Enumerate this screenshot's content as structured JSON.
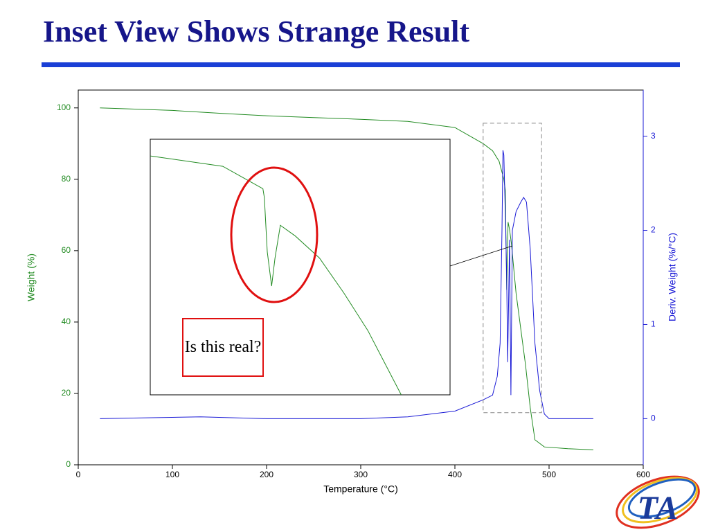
{
  "slide": {
    "title": "Inset View Shows Strange Result",
    "logo": "TA"
  },
  "chart_data": [
    {
      "type": "line",
      "xlabel": "Temperature (°C)",
      "ylabel": "Weight (%)",
      "y2label": "Deriv. Weight (%/°C)",
      "xlim": [
        0,
        600
      ],
      "xticks": [
        0,
        100,
        200,
        300,
        400,
        500,
        600
      ],
      "ylim": [
        0,
        105
      ],
      "yticks": [
        0,
        20,
        40,
        60,
        80,
        100
      ],
      "y2lim": [
        -0.49,
        3.49
      ],
      "y2ticks": [
        0,
        1,
        2,
        3
      ],
      "series": [
        {
          "color": "#228b22",
          "x": [
            23,
            100,
            150,
            200,
            250,
            300,
            350,
            400,
            430,
            440,
            447,
            452,
            453.5,
            455,
            456.5,
            458,
            460,
            465,
            470,
            475,
            480,
            485,
            495,
            520,
            547
          ],
          "values": [
            100,
            99.3,
            98.5,
            97.8,
            97.3,
            96.8,
            96.2,
            94.5,
            90,
            88,
            85,
            80,
            77,
            49,
            68,
            66,
            62,
            48,
            38,
            28,
            16,
            7,
            5,
            4.5,
            4.2
          ]
        },
        {
          "color": "#1a1ad6",
          "axis": "y2",
          "x": [
            23,
            130,
            200,
            300,
            350,
            400,
            430,
            440,
            445,
            448,
            450,
            451,
            452,
            454,
            455,
            456,
            457,
            458,
            459.5,
            461,
            465,
            470,
            473,
            476,
            480,
            485,
            490,
            495,
            500,
            547
          ],
          "values": [
            0,
            0.02,
            0,
            0,
            0.02,
            0.08,
            0.2,
            0.25,
            0.45,
            0.8,
            2.0,
            2.85,
            2.8,
            2.0,
            1.5,
            0.6,
            1.2,
            1.9,
            0.25,
            2.0,
            2.2,
            2.3,
            2.35,
            2.3,
            1.8,
            0.8,
            0.3,
            0.05,
            0,
            0
          ]
        }
      ]
    },
    {
      "type": "line",
      "xlim": [
        430,
        492
      ],
      "ylim": [
        14.6,
        95.7
      ],
      "annotation": "Is this real?",
      "series": [
        {
          "color": "#228b22",
          "x": [
            430,
            445,
            453.3,
            453.6,
            454.2,
            455.1,
            455.8,
            456.9,
            460,
            465,
            470,
            475,
            481.9
          ],
          "values": [
            90.4,
            87.1,
            80,
            77.2,
            60,
            49.1,
            58,
            68.4,
            65,
            58,
            47,
            35,
            14.6
          ]
        }
      ]
    }
  ]
}
